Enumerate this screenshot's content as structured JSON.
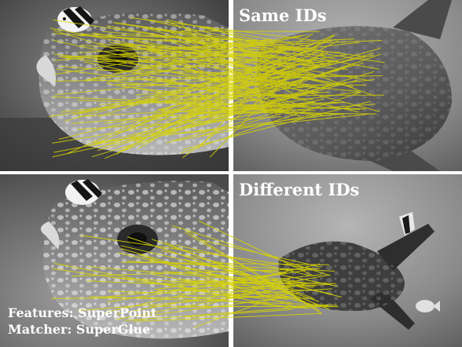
{
  "top_row": {
    "label": "Same IDs",
    "match_color": "#d8d400"
  },
  "bottom_row": {
    "label": "Different IDs",
    "match_color": "#d8d400"
  },
  "caption": {
    "features": "Features: SuperPoint",
    "matcher": "Matcher: SuperGlue"
  },
  "panels": {
    "top_left": "sunfish-closeup-icon",
    "top_right": "sunfish-side-icon",
    "bottom_left": "sunfish-closeup-icon",
    "bottom_right": "sunfish-swimming-icon"
  }
}
